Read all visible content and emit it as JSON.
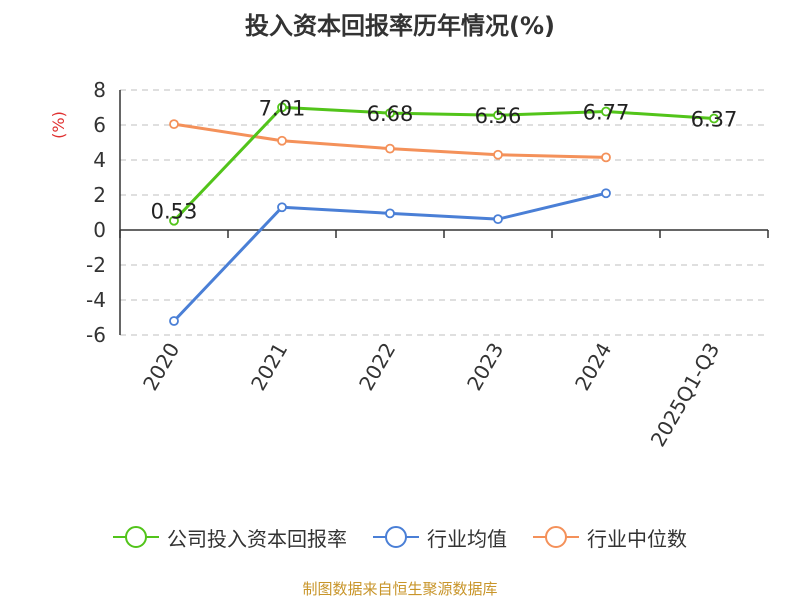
{
  "chart_data": {
    "type": "line",
    "title": "投入资本回报率历年情况(%)",
    "ylabel": "(%)",
    "xlabel": "",
    "categories": [
      "2020",
      "2021",
      "2022",
      "2023",
      "2024",
      "2025Q1-Q3"
    ],
    "yticks": [
      "8",
      "6",
      "4",
      "2",
      "0",
      "-2",
      "-4",
      "-6"
    ],
    "ylim": [
      -6,
      8
    ],
    "grid": true,
    "legend_position": "bottom",
    "series": [
      {
        "name": "公司投入资本回报率",
        "color": "#52c41a",
        "values": [
          0.53,
          7.01,
          6.68,
          6.56,
          6.77,
          6.37
        ],
        "labels": [
          "0.53",
          "7.01",
          "6.68",
          "6.56",
          "6.77",
          "6.37"
        ]
      },
      {
        "name": "行业均值",
        "color": "#4a7fd6",
        "values": [
          -5.2,
          1.3,
          0.95,
          0.62,
          2.1,
          null
        ]
      },
      {
        "name": "行业中位数",
        "color": "#f4915a",
        "values": [
          6.05,
          5.1,
          4.65,
          4.3,
          4.15,
          null
        ]
      }
    ]
  },
  "footer": {
    "source": "制图数据来自恒生聚源数据库"
  },
  "colors": {
    "ylabel": "#e03030",
    "source": "#c8952a"
  }
}
